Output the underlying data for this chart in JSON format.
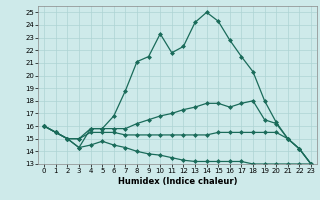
{
  "xlabel": "Humidex (Indice chaleur)",
  "line_color": "#1a6b5a",
  "bg_color": "#ceeaea",
  "grid_color": "#aed4d4",
  "xlim": [
    -0.5,
    23.5
  ],
  "ylim": [
    13,
    25.5
  ],
  "yticks": [
    13,
    14,
    15,
    16,
    17,
    18,
    19,
    20,
    21,
    22,
    23,
    24,
    25
  ],
  "xticks": [
    0,
    1,
    2,
    3,
    4,
    5,
    6,
    7,
    8,
    9,
    10,
    11,
    12,
    13,
    14,
    15,
    16,
    17,
    18,
    19,
    20,
    21,
    22,
    23
  ],
  "curve1_x": [
    0,
    1,
    2,
    3,
    4,
    5,
    6,
    7,
    8,
    9,
    10,
    11,
    12,
    13,
    14,
    15,
    16,
    17,
    18,
    19,
    20,
    21,
    22,
    23
  ],
  "curve1_y": [
    16.0,
    15.5,
    15.0,
    14.3,
    15.8,
    15.8,
    16.8,
    18.8,
    21.1,
    21.5,
    23.3,
    21.8,
    22.3,
    24.2,
    25.0,
    24.3,
    22.8,
    21.5,
    20.3,
    18.0,
    16.3,
    15.0,
    14.2,
    13.0
  ],
  "curve2_x": [
    0,
    1,
    2,
    3,
    4,
    5,
    6,
    7,
    8,
    9,
    10,
    11,
    12,
    13,
    14,
    15,
    16,
    17,
    18,
    19,
    20,
    21,
    22,
    23
  ],
  "curve2_y": [
    16.0,
    15.5,
    15.0,
    15.0,
    15.8,
    15.8,
    15.8,
    15.8,
    16.2,
    16.5,
    16.8,
    17.0,
    17.3,
    17.5,
    17.8,
    17.8,
    17.5,
    17.8,
    18.0,
    16.5,
    16.2,
    15.0,
    14.2,
    13.0
  ],
  "curve3_x": [
    0,
    1,
    2,
    3,
    4,
    5,
    6,
    7,
    8,
    9,
    10,
    11,
    12,
    13,
    14,
    15,
    16,
    17,
    18,
    19,
    20,
    21,
    22,
    23
  ],
  "curve3_y": [
    16.0,
    15.5,
    15.0,
    15.0,
    15.5,
    15.5,
    15.5,
    15.3,
    15.3,
    15.3,
    15.3,
    15.3,
    15.3,
    15.3,
    15.3,
    15.5,
    15.5,
    15.5,
    15.5,
    15.5,
    15.5,
    15.0,
    14.2,
    13.0
  ],
  "curve4_x": [
    0,
    1,
    2,
    3,
    4,
    5,
    6,
    7,
    8,
    9,
    10,
    11,
    12,
    13,
    14,
    15,
    16,
    17,
    18,
    19,
    20,
    21,
    22,
    23
  ],
  "curve4_y": [
    16.0,
    15.5,
    15.0,
    14.3,
    14.5,
    14.8,
    14.5,
    14.3,
    14.0,
    13.8,
    13.7,
    13.5,
    13.3,
    13.2,
    13.2,
    13.2,
    13.2,
    13.2,
    13.0,
    13.0,
    13.0,
    13.0,
    13.0,
    13.0
  ]
}
